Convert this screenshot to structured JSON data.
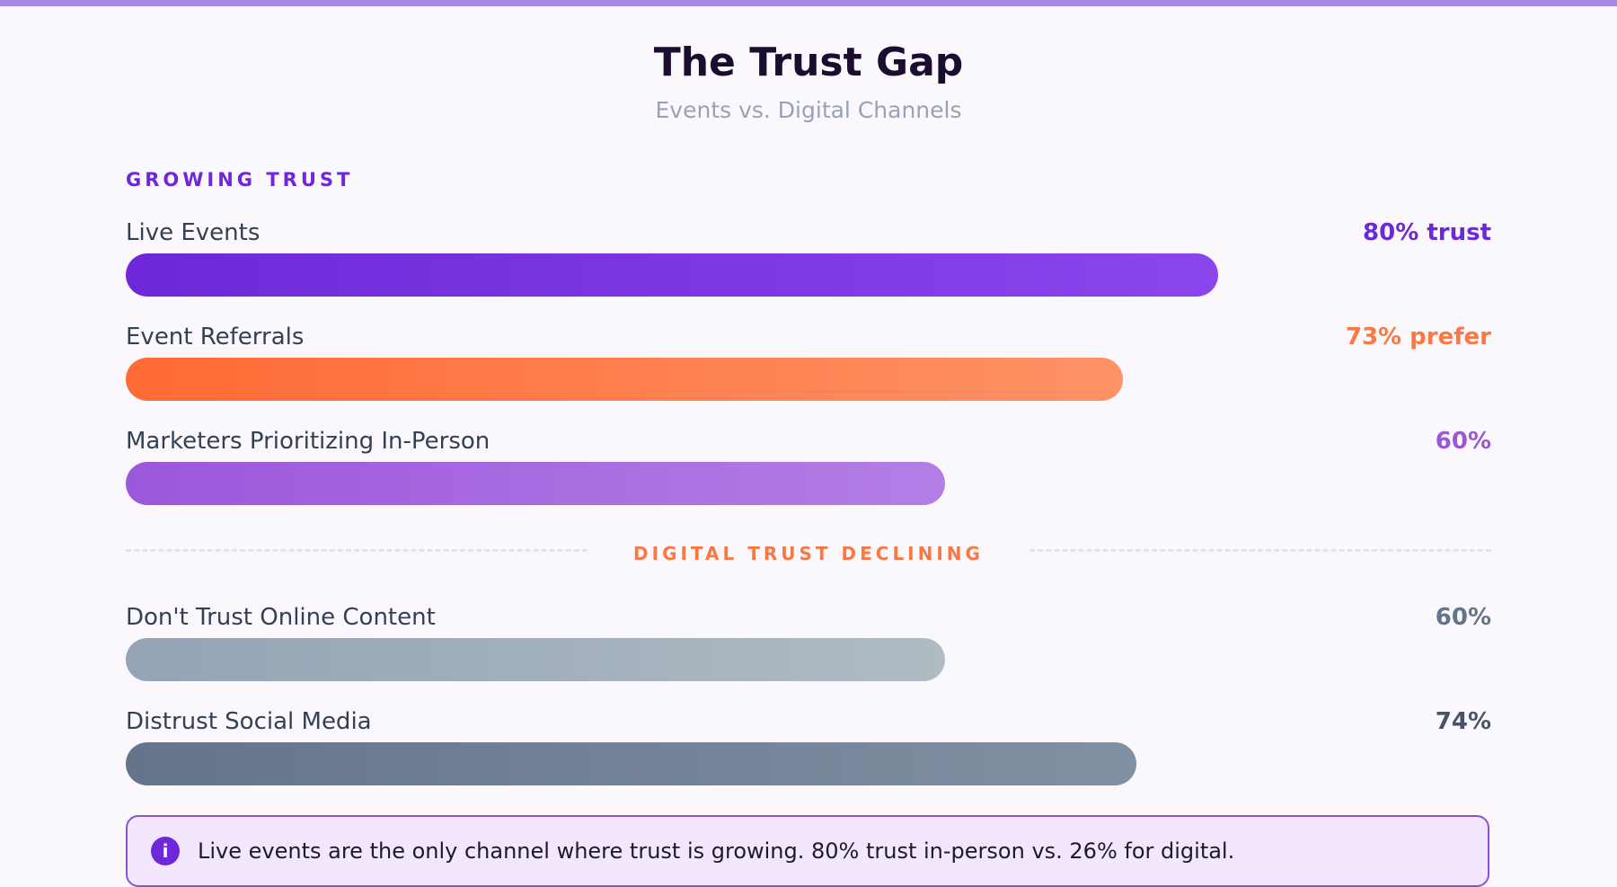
{
  "header": {
    "title": "The Trust Gap",
    "subtitle": "Events vs. Digital Channels"
  },
  "sections": {
    "growing_label": "GROWING TRUST",
    "declining_label": "DIGITAL TRUST DECLINING"
  },
  "note": {
    "icon": "info-icon",
    "icon_glyph": "i",
    "text": "Live events are the only channel where trust is growing. 80% trust in-person vs. 26% for digital."
  },
  "colors": {
    "accent_purple": "#6d28d9",
    "accent_orange": "#f97844",
    "muted_purple": "#9b59d0",
    "slate": "#64748b",
    "dark_slate": "#475467"
  },
  "chart_data": {
    "type": "bar",
    "orientation": "horizontal",
    "title": "The Trust Gap",
    "subtitle": "Events vs. Digital Channels",
    "xlim": [
      0,
      100
    ],
    "categories": [
      "Live Events",
      "Event Referrals",
      "Marketers Prioritizing In-Person",
      "Don't Trust Online Content",
      "Distrust Social Media"
    ],
    "values": [
      80,
      73,
      60,
      60,
      74
    ],
    "value_labels": [
      "80% trust",
      "73% prefer",
      "60%",
      "60%",
      "74%"
    ],
    "groups": [
      {
        "label": "GROWING TRUST",
        "categories": [
          "Live Events",
          "Event Referrals",
          "Marketers Prioritizing In-Person"
        ]
      },
      {
        "label": "DIGITAL TRUST DECLINING",
        "categories": [
          "Don't Trust Online Content",
          "Distrust Social Media"
        ]
      }
    ],
    "grid": false
  }
}
